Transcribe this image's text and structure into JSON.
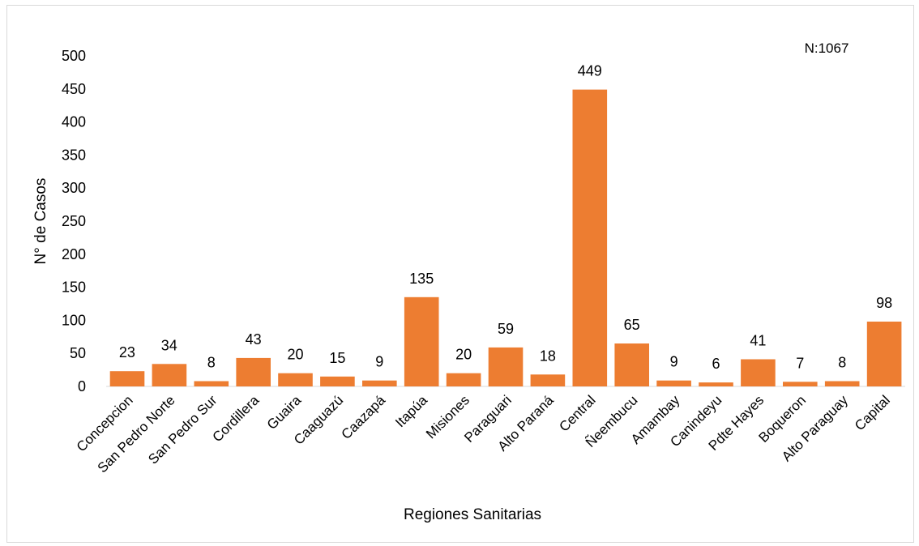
{
  "chart_data": {
    "type": "bar",
    "categories": [
      "Concepcion",
      "San Pedro Norte",
      "San Pedro Sur",
      "Cordillera",
      "Guaira",
      "Caaguazú",
      "Caazapá",
      "Itapúa",
      "Misiones",
      "Paraguari",
      "Alto Paraná",
      "Central",
      "Ñeembucu",
      "Amambay",
      "Canindeyu",
      "Pdte Hayes",
      "Boqueron",
      "Alto Paraguay",
      "Capital"
    ],
    "values": [
      23,
      34,
      8,
      43,
      20,
      15,
      9,
      135,
      20,
      59,
      18,
      449,
      65,
      9,
      6,
      41,
      7,
      8,
      98
    ],
    "xlabel": "Regiones Sanitarias",
    "ylabel": "N° de Casos",
    "ylim": [
      0,
      500
    ],
    "yticks": [
      0,
      50,
      100,
      150,
      200,
      250,
      300,
      350,
      400,
      450,
      500
    ],
    "annotation": "N:1067",
    "bar_color": "#ED7D31",
    "grid": false,
    "legend": "none"
  }
}
